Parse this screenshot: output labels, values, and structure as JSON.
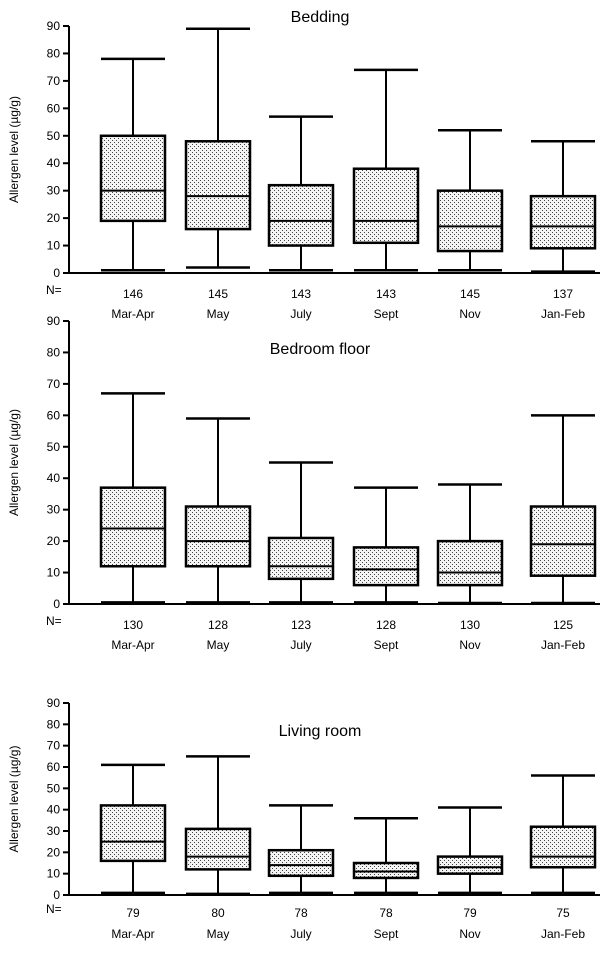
{
  "chart_data": [
    {
      "type": "box",
      "title": "Bedding",
      "ylabel": "Allergen level (µg/g)",
      "ylim": [
        0,
        90
      ],
      "yticks": [
        0,
        10,
        20,
        30,
        40,
        50,
        60,
        70,
        80,
        90
      ],
      "n_label": "N=",
      "categories": [
        "Mar-Apr",
        "May",
        "July",
        "Sept",
        "Nov",
        "Jan-Feb"
      ],
      "n": [
        "146",
        "145",
        "143",
        "143",
        "145",
        "137"
      ],
      "boxes": [
        {
          "min": 1,
          "q1": 19,
          "median": 30,
          "q3": 50,
          "max": 78
        },
        {
          "min": 2,
          "q1": 16,
          "median": 28,
          "q3": 48,
          "max": 89
        },
        {
          "min": 1,
          "q1": 10,
          "median": 19,
          "q3": 32,
          "max": 57
        },
        {
          "min": 1,
          "q1": 11,
          "median": 19,
          "q3": 38,
          "max": 74
        },
        {
          "min": 1,
          "q1": 8,
          "median": 17,
          "q3": 30,
          "max": 52
        },
        {
          "min": 0.5,
          "q1": 9,
          "median": 17,
          "q3": 28,
          "max": 48
        }
      ]
    },
    {
      "type": "box",
      "title": "Bedroom floor",
      "ylabel": "Allergen level (µg/g)",
      "ylim": [
        0,
        90
      ],
      "yticks": [
        0,
        10,
        20,
        30,
        40,
        50,
        60,
        70,
        80,
        90
      ],
      "n_label": "N=",
      "categories": [
        "Mar-Apr",
        "May",
        "July",
        "Sept",
        "Nov",
        "Jan-Feb"
      ],
      "n": [
        "130",
        "128",
        "123",
        "128",
        "130",
        "125"
      ],
      "boxes": [
        {
          "min": 0.5,
          "q1": 12,
          "median": 24,
          "q3": 37,
          "max": 67
        },
        {
          "min": 0.5,
          "q1": 12,
          "median": 20,
          "q3": 31,
          "max": 59
        },
        {
          "min": 0.5,
          "q1": 8,
          "median": 12,
          "q3": 21,
          "max": 45
        },
        {
          "min": 0.5,
          "q1": 6,
          "median": 11,
          "q3": 18,
          "max": 37
        },
        {
          "min": 0.3,
          "q1": 6,
          "median": 10,
          "q3": 20,
          "max": 38
        },
        {
          "min": 0.3,
          "q1": 9,
          "median": 19,
          "q3": 31,
          "max": 60
        }
      ]
    },
    {
      "type": "box",
      "title": "Living room",
      "ylabel": "Allergen level (µg/g)",
      "ylim": [
        0,
        90
      ],
      "yticks": [
        0,
        10,
        20,
        30,
        40,
        50,
        60,
        70,
        80,
        90
      ],
      "n_label": "N=",
      "categories": [
        "Mar-Apr",
        "May",
        "July",
        "Sept",
        "Nov",
        "Jan-Feb"
      ],
      "n": [
        "79",
        "80",
        "78",
        "78",
        "79",
        "75"
      ],
      "boxes": [
        {
          "min": 1,
          "q1": 16,
          "median": 25,
          "q3": 42,
          "max": 61
        },
        {
          "min": 0.5,
          "q1": 12,
          "median": 18,
          "q3": 31,
          "max": 65
        },
        {
          "min": 1,
          "q1": 9,
          "median": 14,
          "q3": 21,
          "max": 42
        },
        {
          "min": 1,
          "q1": 8,
          "median": 11,
          "q3": 15,
          "max": 36
        },
        {
          "min": 1,
          "q1": 10,
          "median": 13,
          "q3": 18,
          "max": 41
        },
        {
          "min": 1,
          "q1": 13,
          "median": 18,
          "q3": 32,
          "max": 56
        }
      ]
    }
  ]
}
